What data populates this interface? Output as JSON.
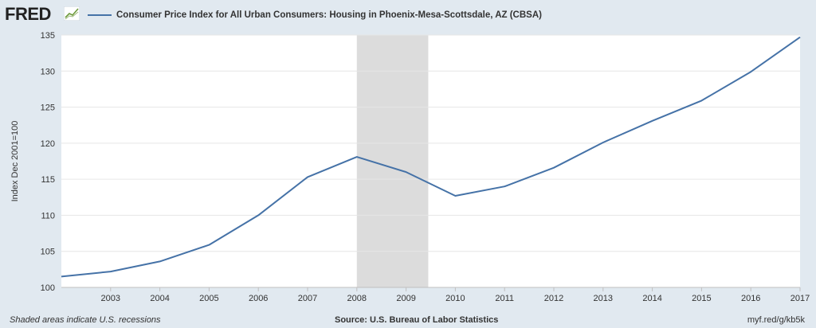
{
  "header": {
    "logo_text": "FRED",
    "legend_label": "Consumer Price Index for All Urban Consumers: Housing in Phoenix-Mesa-Scottsdale, AZ (CBSA)"
  },
  "footer": {
    "left": "Shaded areas indicate U.S. recessions",
    "center": "Source: U.S. Bureau of Labor Statistics",
    "right": "myf.red/g/kb5k"
  },
  "colors": {
    "line": "#4572a7",
    "recession": "#dcdcdc",
    "plot_bg": "#ffffff",
    "page_bg": "#e1e9f0",
    "grid": "#e6e6e6"
  },
  "chart_data": {
    "type": "line",
    "title": "",
    "xlabel": "",
    "ylabel": "Index Dec 2001=100",
    "xlim": [
      2002,
      2017
    ],
    "ylim": [
      100,
      135
    ],
    "x_ticks": [
      "2003",
      "2004",
      "2005",
      "2006",
      "2007",
      "2008",
      "2009",
      "2010",
      "2011",
      "2012",
      "2013",
      "2014",
      "2015",
      "2016",
      "2017"
    ],
    "y_ticks": [
      "100",
      "105",
      "110",
      "115",
      "120",
      "125",
      "130",
      "135"
    ],
    "grid": true,
    "recessions": [
      [
        2008,
        2009.45
      ]
    ],
    "series": [
      {
        "name": "Consumer Price Index for All Urban Consumers: Housing in Phoenix-Mesa-Scottsdale, AZ (CBSA)",
        "x": [
          2002,
          2003,
          2004,
          2005,
          2006,
          2007,
          2008,
          2009,
          2010,
          2011,
          2012,
          2013,
          2014,
          2015,
          2016,
          2017
        ],
        "values": [
          101.5,
          102.2,
          103.6,
          105.9,
          110.0,
          115.3,
          118.1,
          116.0,
          112.7,
          114.0,
          116.6,
          120.1,
          123.1,
          125.9,
          129.9,
          134.7
        ]
      }
    ]
  }
}
